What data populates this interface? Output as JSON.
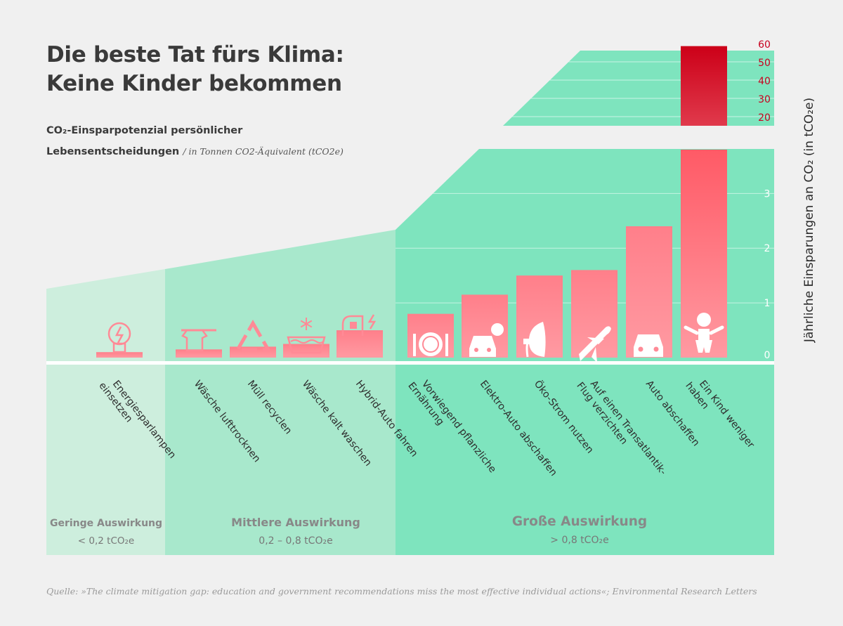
{
  "title_line1": "Die beste Tat fürs Klima:",
  "title_line2": "Keine Kinder bekommen",
  "subtitle_line1": "CO₂-Einsparpotenzial persönlicher",
  "subtitle_line2": "Lebensentscheidungen",
  "subtitle_note": "/ in Tonnen CO2-Äquivalent (tCO2e)",
  "source": "Quelle: »The climate mitigation gap: education and government recommendations miss the most effective individual actions«; Environmental Research Letters",
  "colors": {
    "bar_light": "#ff9aa2",
    "bar_mid": "#ff5a66",
    "bar_top": "#cc0018",
    "green_big": "#7ee4be",
    "green_mid": "#a8e8cc",
    "green_low": "#cdeedd",
    "accent_red": "#c8001e"
  },
  "chart_data": {
    "type": "bar",
    "title": "Die beste Tat fürs Klima: Keine Kinder bekommen",
    "ylabel": "Jährliche Einsparungen an CO₂ (in tCO₂e)",
    "lower_axis": {
      "ylim": [
        0,
        3.8
      ],
      "ticks": [
        0,
        1,
        2,
        3
      ]
    },
    "upper_axis": {
      "ylim": [
        15,
        60
      ],
      "ticks": [
        20,
        30,
        40,
        50,
        60
      ]
    },
    "categories": [
      "Energiesparlampen einsetzen",
      "Wäsche lufttrocknen",
      "Müll recyclen",
      "Wäsche kalt waschen",
      "Hybrid-Auto fahren",
      "Vorwiegend pflanzliche Ernährung",
      "Elektro-Auto abschaffen",
      "Öko-Strom nutzen",
      "Auf einen Transatlantik-Flug verzichten",
      "Auto abschaffen",
      "Ein Kind weniger haben"
    ],
    "label_lines": [
      [
        "Energiesparlampen",
        "einsetzen"
      ],
      [
        "Wäsche lufttrocknen"
      ],
      [
        "Müll recyclen"
      ],
      [
        "Wäsche kalt waschen"
      ],
      [
        "Hybrid-Auto fahren"
      ],
      [
        "Vorwiegend pflanzliche",
        "Ernährung"
      ],
      [
        "Elektro-Auto abschaffen"
      ],
      [
        "Öko-Strom nutzen"
      ],
      [
        "Auf einen Transatlantik-",
        "Flug verzichten"
      ],
      [
        "Auto abschaffen"
      ],
      [
        "Ein Kind weniger",
        "haben"
      ]
    ],
    "icons": [
      "lightbulb-icon",
      "clothesline-icon",
      "recycle-icon",
      "cold-wash-icon",
      "hybrid-car-icon",
      "plate-icon",
      "electric-car-icon",
      "eco-plug-icon",
      "airplane-icon",
      "car-icon",
      "baby-icon"
    ],
    "values": [
      0.1,
      0.15,
      0.2,
      0.25,
      0.5,
      0.8,
      1.15,
      1.5,
      1.6,
      2.4,
      58.6
    ],
    "categories_groups": [
      {
        "name": "Geringe Auswirkung",
        "range": "< 0,2 tCO₂e"
      },
      {
        "name": "Mittlere Auswirkung",
        "range": "0,2 – 0,8 tCO₂e"
      },
      {
        "name": "Große  Auswirkung",
        "range": "> 0,8 tCO₂e"
      }
    ]
  }
}
